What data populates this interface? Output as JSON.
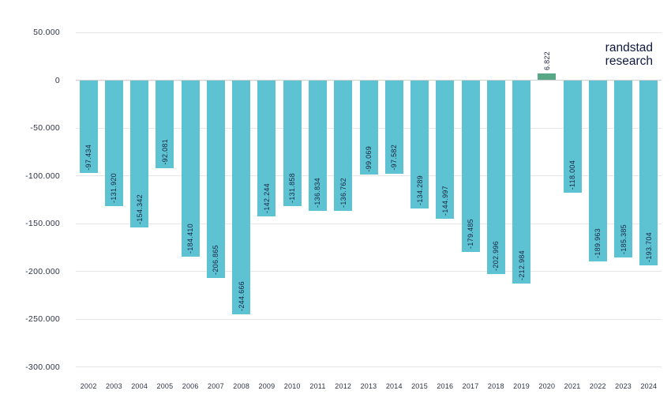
{
  "brand": {
    "line1": "randstad",
    "line2": "research"
  },
  "colors": {
    "bar_negative": "#5dc3d2",
    "bar_positive": "#58a888",
    "value_label": "#1a2342",
    "axis_label": "#2e3348",
    "gridline": "#e6e6e6",
    "zero_line": "#cfcfcf",
    "background": "#ffffff",
    "brand_text": "#0f1941"
  },
  "chart_data": {
    "type": "bar",
    "title": "",
    "xlabel": "",
    "ylabel": "",
    "legend": "none",
    "grid": "horizontal",
    "ylim": [
      -300000,
      50000
    ],
    "y_ticks": [
      {
        "value": 50000,
        "label": "50.000"
      },
      {
        "value": 0,
        "label": "0"
      },
      {
        "value": -50000,
        "label": "-50.000"
      },
      {
        "value": -100000,
        "label": "-100.000"
      },
      {
        "value": -150000,
        "label": "-150.000"
      },
      {
        "value": -200000,
        "label": "-200.000"
      },
      {
        "value": -250000,
        "label": "-250.000"
      },
      {
        "value": -300000,
        "label": "-300.000"
      }
    ],
    "categories": [
      "2002",
      "2003",
      "2004",
      "2005",
      "2006",
      "2007",
      "2008",
      "2009",
      "2010",
      "2011",
      "2012",
      "2013",
      "2014",
      "2015",
      "2016",
      "2017",
      "2018",
      "2019",
      "2020",
      "2021",
      "2022",
      "2023",
      "2024"
    ],
    "values": [
      -97434,
      -131920,
      -154342,
      -92081,
      -184410,
      -206865,
      -244666,
      -142244,
      -131858,
      -136834,
      -136762,
      -99069,
      -97582,
      -134289,
      -144997,
      -179485,
      -202996,
      -212984,
      6822,
      -118004,
      -189963,
      -185385,
      -193704
    ],
    "value_labels": [
      "-97.434",
      "-131.920",
      "-154.342",
      "-92.081",
      "-184.410",
      "-206.865",
      "-244.666",
      "-142.244",
      "-131.858",
      "-136.834",
      "-136.762",
      "-99.069",
      "-97.582",
      "-134.289",
      "-144.997",
      "-179.485",
      "-202.996",
      "-212.984",
      "6.822",
      "-118.004",
      "-189.963",
      "-185.385",
      "-193.704"
    ]
  }
}
